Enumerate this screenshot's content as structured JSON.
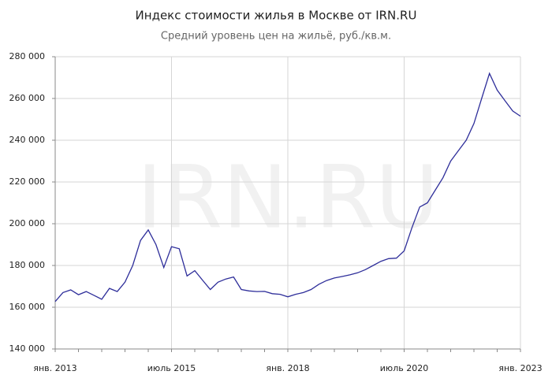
{
  "chart_data": {
    "type": "line",
    "title": "Индекс стоимости жилья в Москве от IRN.RU",
    "subtitle": "Средний уровень цен на жильё, руб./кв.м.",
    "watermark": "IRN.RU",
    "x": [
      "2013-01",
      "2013-03",
      "2013-05",
      "2013-07",
      "2013-09",
      "2013-11",
      "2014-01",
      "2014-03",
      "2014-05",
      "2014-07",
      "2014-09",
      "2014-11",
      "2015-01",
      "2015-03",
      "2015-05",
      "2015-07",
      "2015-09",
      "2015-11",
      "2016-01",
      "2016-03",
      "2016-05",
      "2016-07",
      "2016-09",
      "2016-11",
      "2017-01",
      "2017-03",
      "2017-05",
      "2017-07",
      "2017-09",
      "2017-11",
      "2018-01",
      "2018-03",
      "2018-05",
      "2018-07",
      "2018-09",
      "2018-11",
      "2019-01",
      "2019-03",
      "2019-05",
      "2019-07",
      "2019-09",
      "2019-11",
      "2020-01",
      "2020-03",
      "2020-05",
      "2020-07",
      "2020-09",
      "2020-11",
      "2021-01",
      "2021-03",
      "2021-05",
      "2021-07",
      "2021-09",
      "2021-11",
      "2022-01",
      "2022-03",
      "2022-05",
      "2022-07",
      "2022-09",
      "2022-11",
      "2023-01"
    ],
    "series": [
      {
        "color": "#2e2e9a",
        "values": [
          162700,
          167000,
          168300,
          166000,
          167500,
          165700,
          163800,
          169000,
          167500,
          172000,
          180000,
          192000,
          197000,
          190000,
          179000,
          189000,
          188000,
          175000,
          177500,
          173000,
          168500,
          172000,
          173500,
          174500,
          168500,
          167800,
          167500,
          167600,
          166500,
          166200,
          165000,
          166200,
          167000,
          168500,
          171000,
          172800,
          174000,
          174700,
          175500,
          176500,
          178000,
          180000,
          182000,
          183300,
          183500,
          187000,
          198000,
          208000,
          210000,
          216000,
          222000,
          230000,
          235000,
          240000,
          248000,
          260000,
          272000,
          264000,
          259000,
          254000,
          251500
        ]
      }
    ],
    "xticks": [
      {
        "value": "2013-01",
        "label": "янв. 2013"
      },
      {
        "value": "2015-07",
        "label": "июль 2015"
      },
      {
        "value": "2018-01",
        "label": "янв. 2018"
      },
      {
        "value": "2020-07",
        "label": "июль 2020"
      },
      {
        "value": "2023-01",
        "label": "янв. 2023"
      }
    ],
    "ylim": [
      140000,
      280000
    ],
    "yticks": [
      {
        "value": 140000,
        "label": "140 000"
      },
      {
        "value": 160000,
        "label": "160 000"
      },
      {
        "value": 180000,
        "label": "180 000"
      },
      {
        "value": 200000,
        "label": "200 000"
      },
      {
        "value": 220000,
        "label": "220 000"
      },
      {
        "value": 240000,
        "label": "240 000"
      },
      {
        "value": 260000,
        "label": "260 000"
      },
      {
        "value": 280000,
        "label": "280 000"
      }
    ],
    "grid": true
  }
}
